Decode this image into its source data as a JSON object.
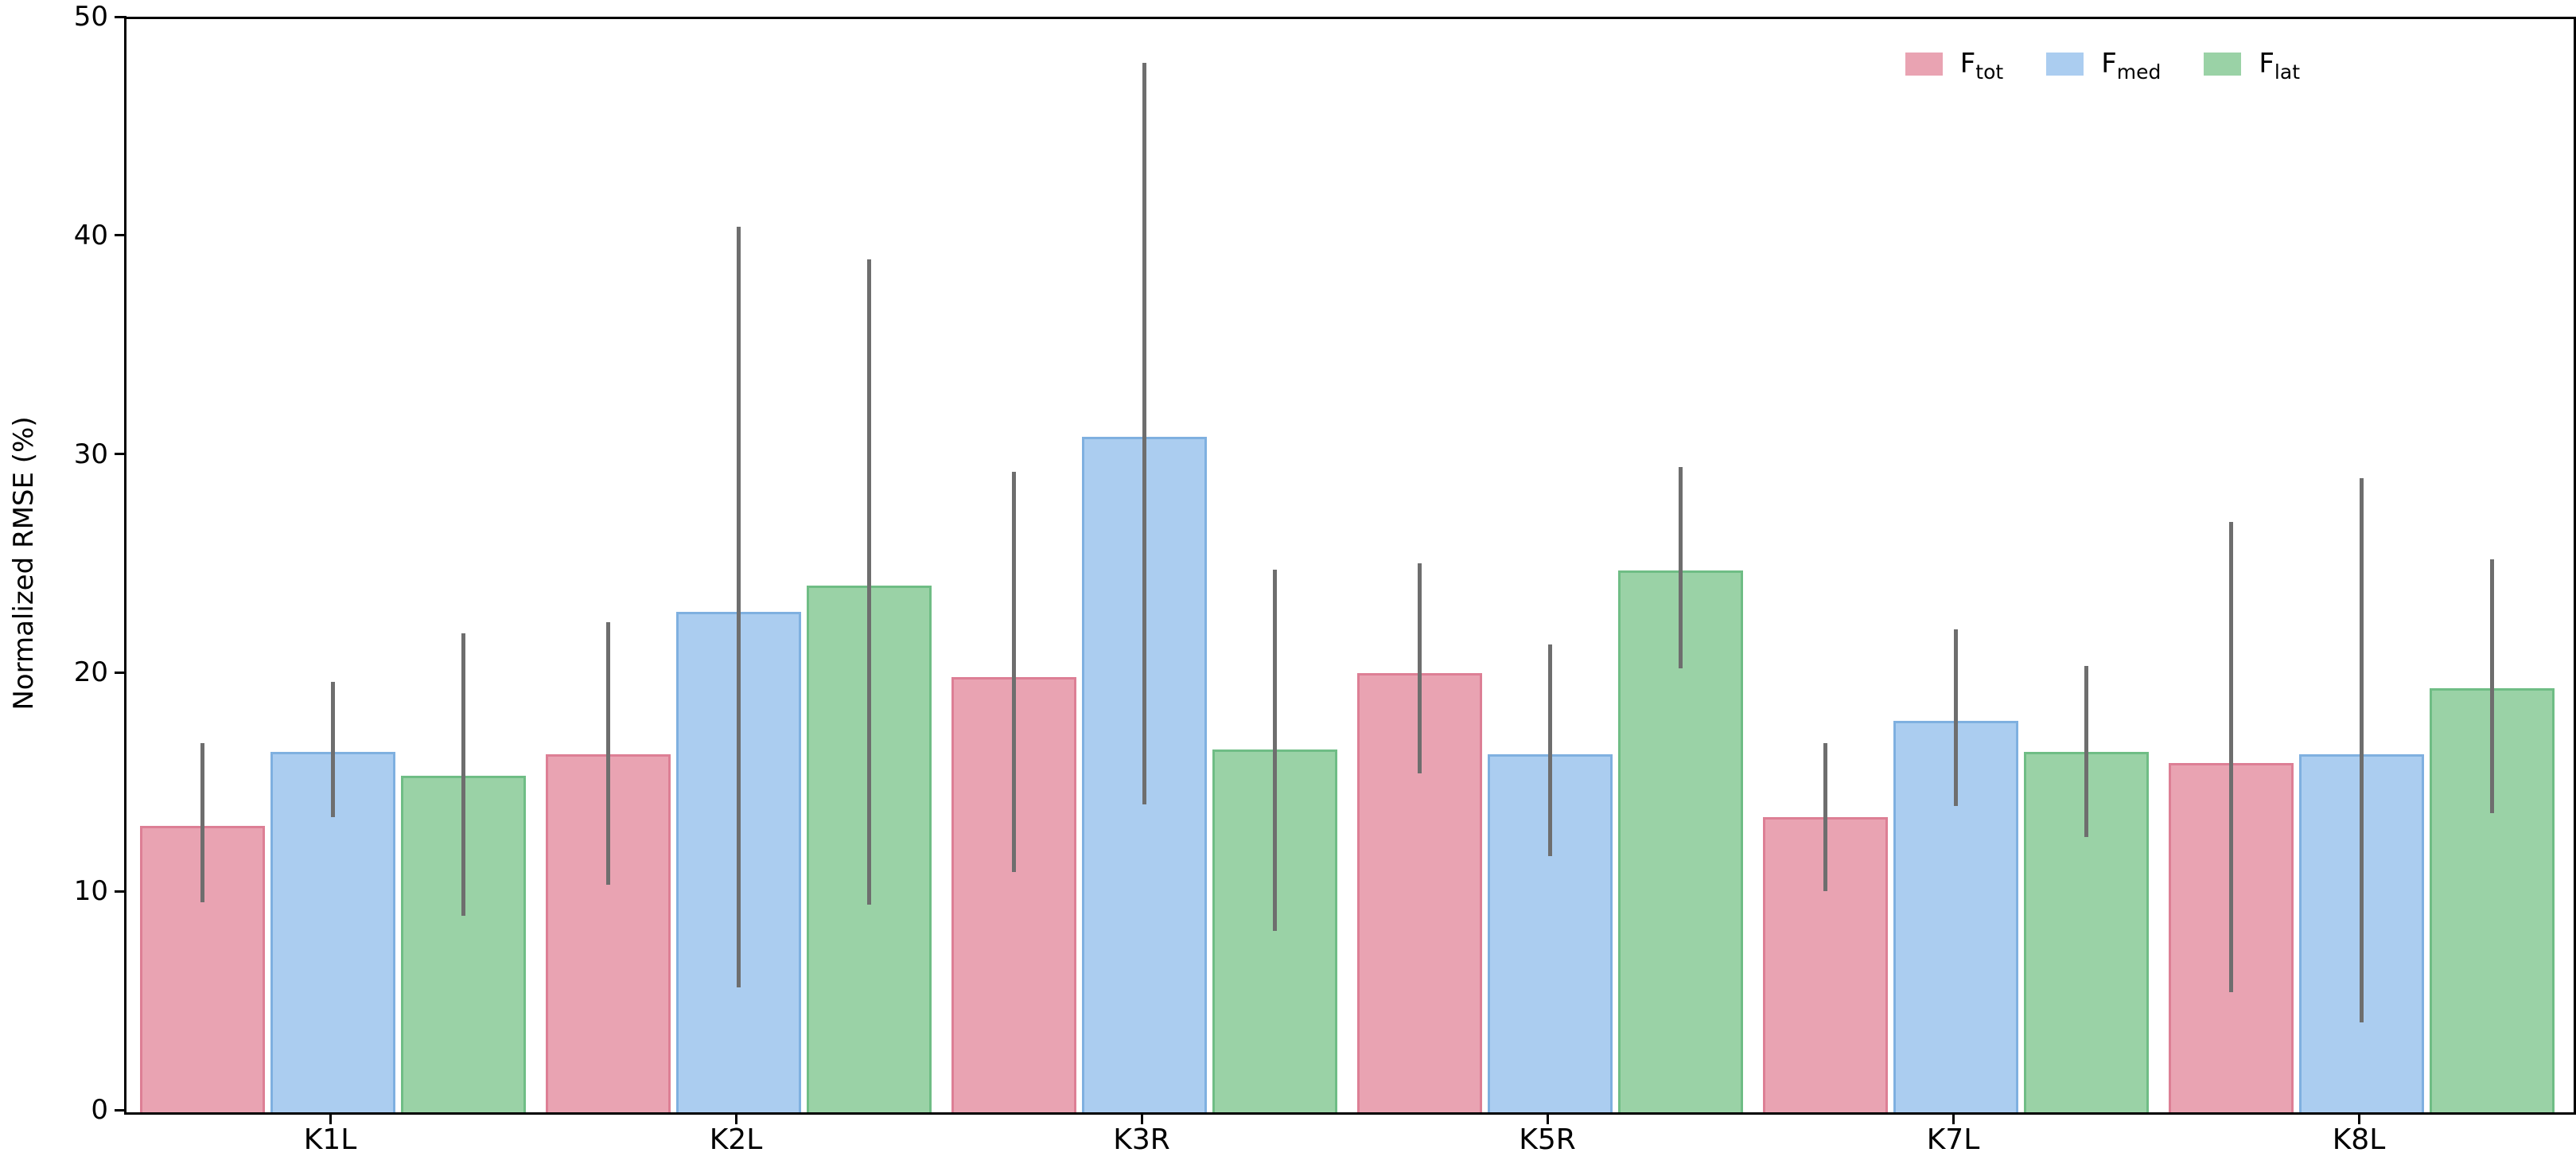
{
  "chart_data": {
    "type": "bar",
    "title": "",
    "xlabel": "",
    "ylabel": "Normalized RMSE (%)",
    "ylim": [
      0,
      50
    ],
    "yticks": [
      0,
      10,
      20,
      30,
      40,
      50
    ],
    "grid": false,
    "legend_position": "top-right",
    "categories": [
      "K1L",
      "K2L",
      "K3R",
      "K5R",
      "K7L",
      "K8L"
    ],
    "series": [
      {
        "name": "F_tot",
        "label_main": "F",
        "label_sub": "tot",
        "fill_color": "#e9a3b2",
        "edge_color": "#dd7f95",
        "values": [
          13.2,
          16.5,
          20.0,
          20.2,
          13.6,
          16.1
        ],
        "err_low": [
          9.6,
          10.4,
          11.0,
          15.5,
          10.1,
          5.5
        ],
        "err_high": [
          16.9,
          22.4,
          29.3,
          25.1,
          16.9,
          27.0
        ]
      },
      {
        "name": "F_med",
        "label_main": "F",
        "label_sub": "med",
        "fill_color": "#abcdf0",
        "edge_color": "#7fb0e0",
        "values": [
          16.6,
          23.0,
          31.0,
          16.5,
          18.0,
          16.5
        ],
        "err_low": [
          13.5,
          5.7,
          14.1,
          11.7,
          14.0,
          4.1
        ],
        "err_high": [
          19.7,
          40.5,
          48.0,
          21.4,
          22.1,
          29.0
        ]
      },
      {
        "name": "F_lat",
        "label_main": "F",
        "label_sub": "lat",
        "fill_color": "#9ad2a6",
        "edge_color": "#6fbd85",
        "values": [
          15.5,
          24.2,
          16.7,
          24.9,
          16.6,
          19.5
        ],
        "err_low": [
          9.0,
          9.5,
          8.3,
          20.3,
          12.6,
          13.7
        ],
        "err_high": [
          21.9,
          39.0,
          24.8,
          29.5,
          20.4,
          25.3
        ]
      }
    ],
    "errorbar_color": "#6e6e6e",
    "spine_color": "#000000"
  }
}
